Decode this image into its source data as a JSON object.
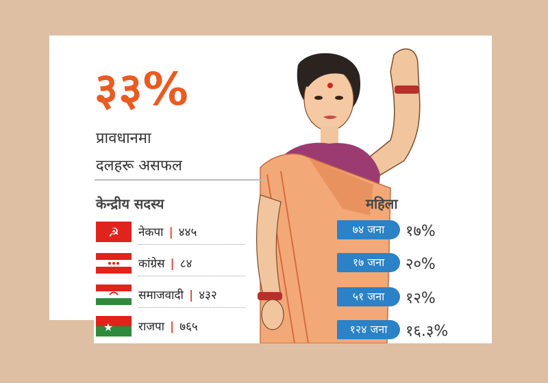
{
  "headline": {
    "big": "३३%",
    "line1": "प्रावधानमा",
    "line2": "दलहरू असफल"
  },
  "left_header": "केन्द्रीय सदस्य",
  "right_header": "महिला",
  "parties": [
    {
      "name": "नेकपा",
      "count": "४४५",
      "flag": "hammer-sickle-flag"
    },
    {
      "name": "कांग्रेस",
      "count": "८४",
      "flag": "congress-flag"
    },
    {
      "name": "समाजवादी",
      "count": "४३२",
      "flag": "samajbadi-flag"
    },
    {
      "name": "राजपा",
      "count": "७६५",
      "flag": "star-flag"
    }
  ],
  "women": [
    {
      "count": "७४ जना",
      "pct": "१७%"
    },
    {
      "count": "१७ जना",
      "pct": "२०%"
    },
    {
      "count": "५१ जना",
      "pct": "१२%"
    },
    {
      "count": "१२४ जना",
      "pct": "१६.३%"
    }
  ],
  "colors": {
    "accent": "#ea5b22",
    "pill": "#2b82c6",
    "background": "#dfbfa3"
  }
}
